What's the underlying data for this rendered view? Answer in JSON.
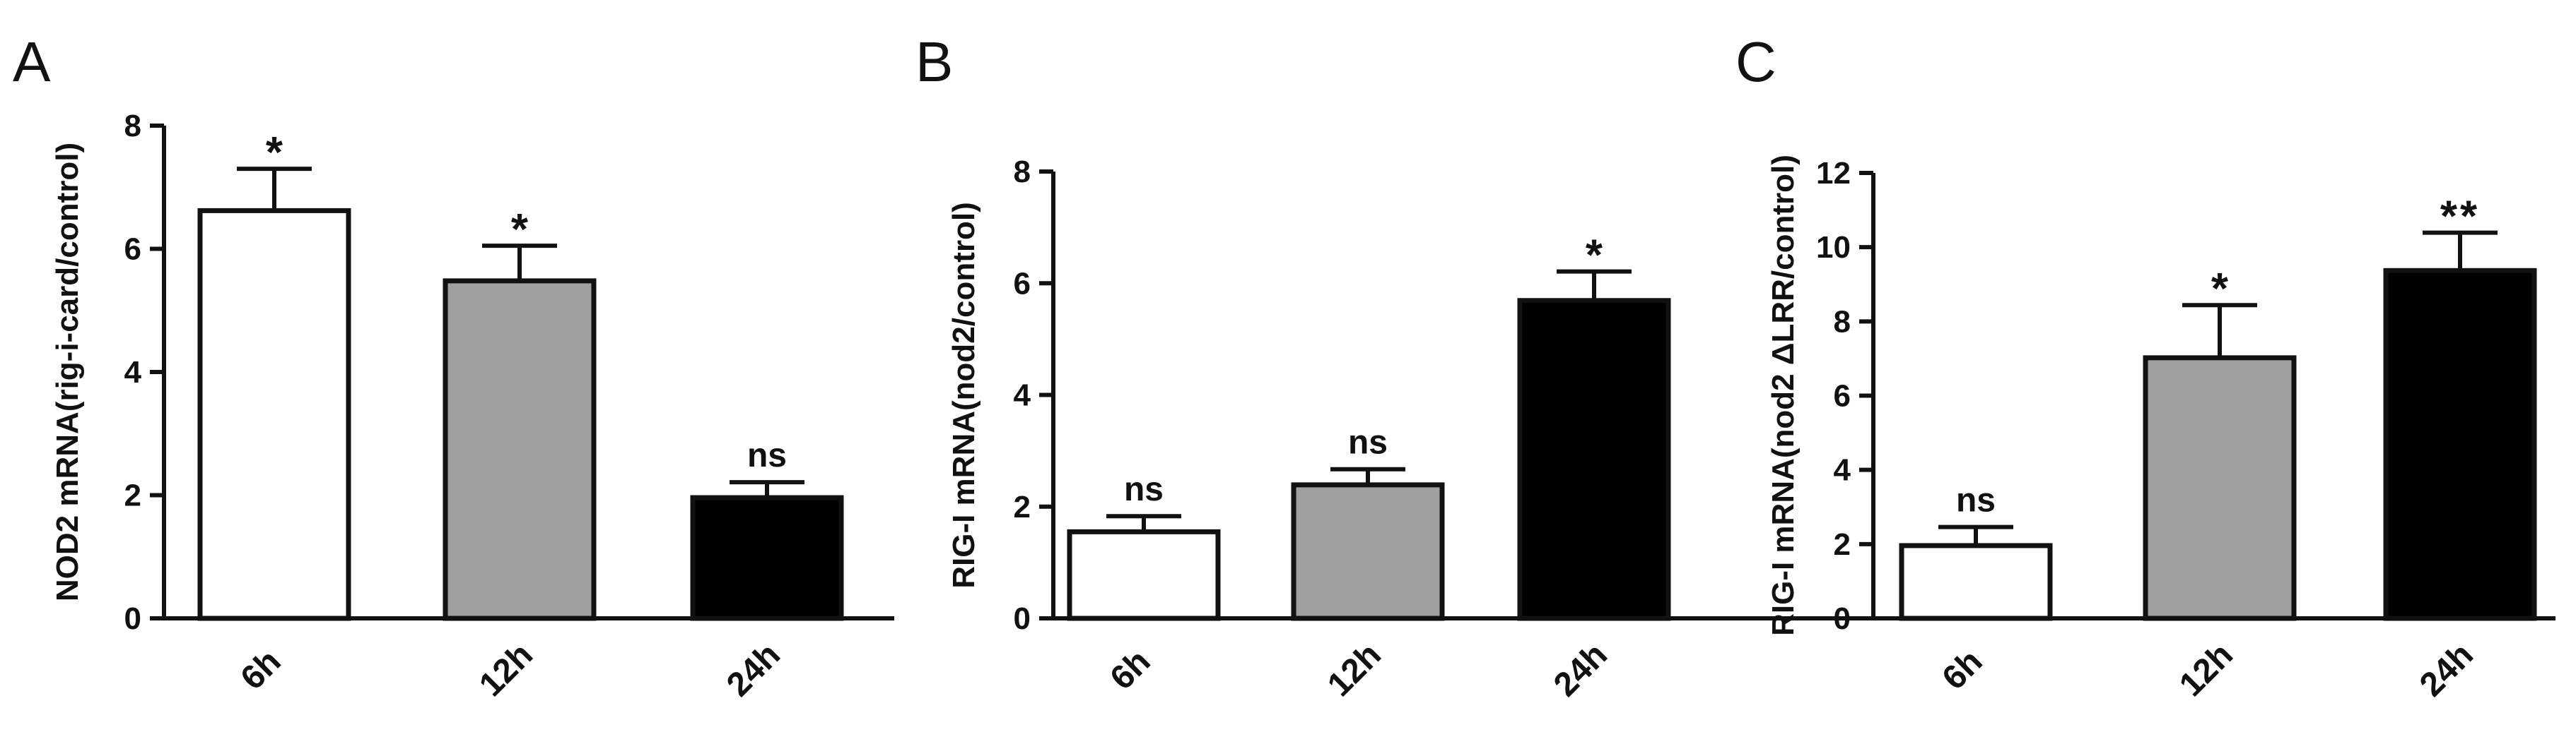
{
  "chart_data": [
    {
      "panel": "A",
      "type": "bar",
      "ylabel": "NOD2 mRNA(rig-i-card/control)",
      "categories": [
        "6h",
        "12h",
        "24h"
      ],
      "values": [
        6.62,
        5.48,
        1.96
      ],
      "errors": [
        0.68,
        0.57,
        0.25
      ],
      "significance": [
        "*",
        "*",
        "ns"
      ],
      "bar_colors": [
        "#ffffff",
        "#a0a0a0",
        "#000000"
      ],
      "ylim": [
        0,
        8
      ],
      "yticks": [
        "0",
        "2",
        "4",
        "6",
        "8"
      ]
    },
    {
      "panel": "B",
      "type": "bar",
      "ylabel": "RIG-I mRNA(nod2/control)",
      "categories": [
        "6h",
        "12h",
        "24h"
      ],
      "values": [
        1.55,
        2.39,
        5.69
      ],
      "errors": [
        0.28,
        0.28,
        0.52
      ],
      "significance": [
        "ns",
        "ns",
        "*"
      ],
      "bar_colors": [
        "#ffffff",
        "#a0a0a0",
        "#000000"
      ],
      "ylim": [
        0,
        8
      ],
      "yticks": [
        "0",
        "2",
        "4",
        "6",
        "8"
      ]
    },
    {
      "panel": "C",
      "type": "bar",
      "ylabel": "RIG-I mRNA(nod2 ΔLRR/control)",
      "categories": [
        "6h",
        "12h",
        "24h"
      ],
      "values": [
        1.96,
        7.02,
        9.37
      ],
      "errors": [
        0.5,
        1.42,
        1.02
      ],
      "significance": [
        "ns",
        "*",
        "**"
      ],
      "bar_colors": [
        "#ffffff",
        "#a0a0a0",
        "#000000"
      ],
      "ylim": [
        0,
        12
      ],
      "yticks": [
        "0",
        "2",
        "4",
        "6",
        "8",
        "10",
        "12"
      ]
    }
  ]
}
